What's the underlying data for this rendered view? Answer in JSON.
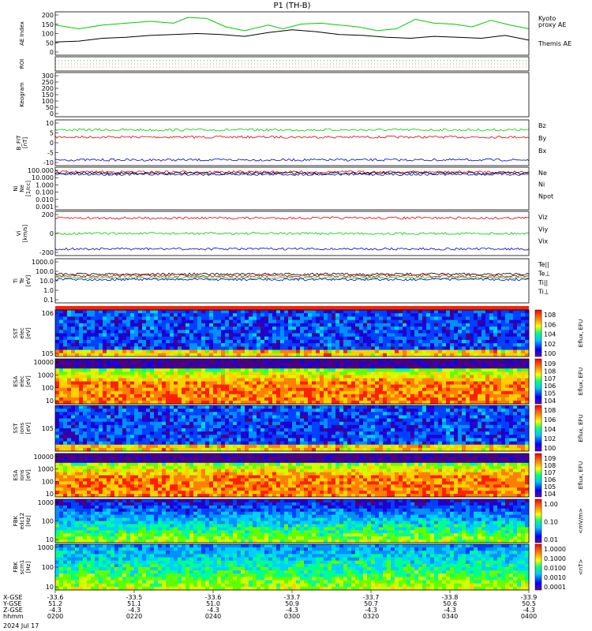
{
  "title": "P1  (TH-B)",
  "date": "2024 Jul 17",
  "chart_data": [
    {
      "type": "line",
      "panel": "ae",
      "ylabel": "AE Index",
      "yticks": [
        "200",
        "150",
        "100",
        "50",
        "0"
      ],
      "ylim": [
        -20,
        210
      ],
      "series": [
        {
          "name": "Kyoto\nproxy AE",
          "color": "#00cc00",
          "x": [
            0,
            0.05,
            0.1,
            0.15,
            0.2,
            0.25,
            0.28,
            0.32,
            0.36,
            0.4,
            0.45,
            0.48,
            0.52,
            0.56,
            0.6,
            0.64,
            0.68,
            0.72,
            0.76,
            0.8,
            0.84,
            0.88,
            0.92,
            0.96,
            1.0
          ],
          "values": [
            140,
            120,
            140,
            150,
            160,
            150,
            180,
            175,
            130,
            110,
            140,
            120,
            145,
            150,
            140,
            130,
            110,
            120,
            170,
            150,
            145,
            130,
            165,
            140,
            120
          ]
        },
        {
          "name": "Themis AE",
          "color": "#000000",
          "x": [
            0,
            0.05,
            0.1,
            0.15,
            0.2,
            0.25,
            0.3,
            0.35,
            0.4,
            0.45,
            0.5,
            0.55,
            0.6,
            0.65,
            0.7,
            0.75,
            0.8,
            0.85,
            0.9,
            0.95,
            1.0
          ],
          "values": [
            50,
            55,
            70,
            75,
            85,
            90,
            95,
            90,
            80,
            100,
            115,
            105,
            90,
            85,
            75,
            70,
            80,
            75,
            70,
            85,
            60
          ]
        }
      ]
    },
    {
      "type": "line",
      "panel": "roi",
      "ylabel": "ROI",
      "yticks": []
    },
    {
      "type": "heatmap",
      "panel": "keogram",
      "ylabel": "Keogram",
      "yticks": [
        "300",
        "250",
        "200",
        "150",
        "100",
        "50",
        "0"
      ]
    },
    {
      "type": "line",
      "panel": "bfield",
      "ylabel": "B_FIT\n[nT]",
      "yticks": [
        "10",
        "5",
        "0",
        "-5",
        "-10"
      ],
      "ylim": [
        -17,
        15
      ],
      "series": [
        {
          "name": "Bz",
          "color": "#dd0000",
          "base": 3,
          "noise": 1.5
        },
        {
          "name": "By",
          "color": "#00cc00",
          "base": 8,
          "noise": 0.8
        },
        {
          "name": "Bx",
          "color": "#0000cc",
          "base": -13,
          "noise": 1.0
        }
      ]
    },
    {
      "type": "line",
      "panel": "density",
      "ylabel": "Ni\nNe\n[1/cc]",
      "yticks": [
        "100.000",
        "10.000",
        "1.000",
        "0.100",
        "0.010",
        "0.001"
      ],
      "series": [
        {
          "name": "Ne",
          "color": "#dd0000"
        },
        {
          "name": "Ni",
          "color": "#000000"
        },
        {
          "name": "Npot",
          "color": "#0000cc"
        }
      ]
    },
    {
      "type": "line",
      "panel": "velocity",
      "ylabel": "Vi\n[km/s]",
      "yticks": [
        "200",
        "0",
        "-200"
      ],
      "series": [
        {
          "name": "Viz",
          "color": "#dd0000"
        },
        {
          "name": "Viy",
          "color": "#00cc00"
        },
        {
          "name": "Vix",
          "color": "#0000cc"
        }
      ]
    },
    {
      "type": "line",
      "panel": "temperature",
      "ylabel": "Ti\nTe\n[eV]",
      "yticks": [
        "1000.0",
        "100.0",
        "10.0",
        "1.0",
        "0.1"
      ],
      "series": [
        {
          "name": "Te||",
          "color": "#000000"
        },
        {
          "name": "Te⊥",
          "color": "#dd0000"
        },
        {
          "name": "Ti||",
          "color": "#00cc00"
        },
        {
          "name": "Ti⊥",
          "color": "#0000cc"
        }
      ]
    },
    {
      "type": "heatmap",
      "panel": "sst_e",
      "ylabel": "SST\nelec\n[eV]",
      "yticks": [
        "10^6",
        "10^5"
      ],
      "colorbar": {
        "label": "Eflux, EFU",
        "ticks": [
          "10^8",
          "10^6",
          "10^4",
          "10^2",
          "10^0"
        ]
      }
    },
    {
      "type": "heatmap",
      "panel": "esa_e",
      "ylabel": "ESA\nelec\n[eV]",
      "yticks": [
        "10000",
        "1000",
        "100",
        "10"
      ],
      "colorbar": {
        "label": "Eflux, EFU",
        "ticks": [
          "10^9",
          "10^8",
          "10^7",
          "10^6",
          "10^5",
          "10^4"
        ]
      }
    },
    {
      "type": "heatmap",
      "panel": "sst_i",
      "ylabel": "SST\nions\n[eV]",
      "yticks": [
        "10^5"
      ],
      "colorbar": {
        "label": "Eflux, EFU",
        "ticks": [
          "10^8",
          "10^6",
          "10^4",
          "10^2",
          "10^0"
        ]
      }
    },
    {
      "type": "heatmap",
      "panel": "esa_i",
      "ylabel": "ESA\nions\n[eV]",
      "yticks": [
        "10000",
        "1000",
        "100",
        "10"
      ],
      "colorbar": {
        "label": "Eflux, EFU",
        "ticks": [
          "10^9",
          "10^8",
          "10^7",
          "10^6",
          "10^5",
          "10^4"
        ]
      }
    },
    {
      "type": "heatmap",
      "panel": "fbk_e",
      "ylabel": "FBK\nedc12\n[Hz]",
      "yticks": [
        "1000",
        "100",
        "10"
      ],
      "colorbar": {
        "label": "<mV/m>",
        "ticks": [
          "1.00",
          "0.10",
          "0.01"
        ]
      }
    },
    {
      "type": "heatmap",
      "panel": "fbk_b",
      "ylabel": "FBK\nscm1\n[Hz]",
      "yticks": [
        "1000",
        "100",
        "10"
      ],
      "colorbar": {
        "label": "<nT>",
        "ticks": [
          "1.0000",
          "0.1000",
          "0.0100",
          "0.0010",
          "0.0001"
        ]
      }
    }
  ],
  "xaxis": {
    "rows": [
      "X-GSE",
      "Y-GSE",
      "Z-GSE",
      "hhmm"
    ],
    "columns": [
      {
        "x": "-33.6",
        "y": "51.2",
        "z": "-4.3",
        "t": "0200"
      },
      {
        "x": "-33.5",
        "y": "51.1",
        "z": "-4.3",
        "t": "0220"
      },
      {
        "x": "-33.6",
        "y": "51.0",
        "z": "-4.3",
        "t": "0240"
      },
      {
        "x": "-33.7",
        "y": "50.9",
        "z": "-4.3",
        "t": "0300"
      },
      {
        "x": "-33.7",
        "y": "50.7",
        "z": "-4.3",
        "t": "0320"
      },
      {
        "x": "-33.8",
        "y": "50.6",
        "z": "-4.3",
        "t": "0340"
      },
      {
        "x": "-33.9",
        "y": "50.5",
        "z": "-4.3",
        "t": "0400"
      }
    ]
  }
}
